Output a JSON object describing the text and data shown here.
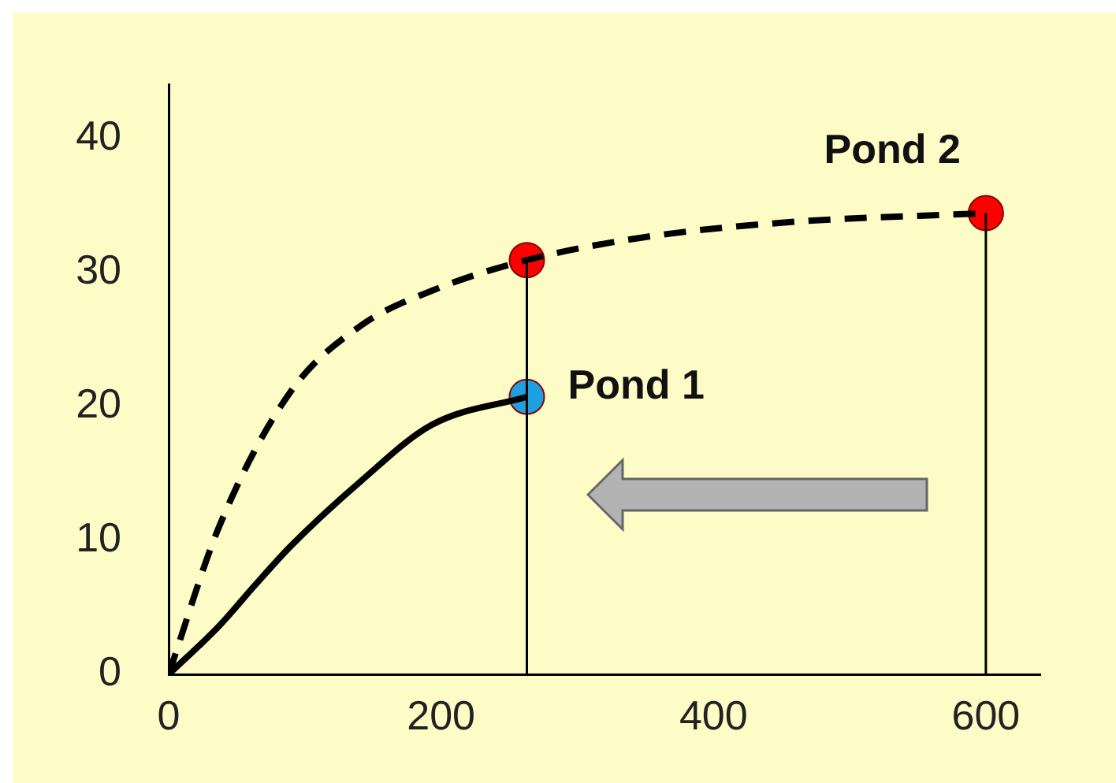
{
  "chart_data": {
    "type": "line",
    "xlim": [
      0,
      640
    ],
    "xticks": [
      0,
      200,
      400,
      600
    ],
    "ylim": [
      0,
      44
    ],
    "yticks": [
      0,
      10,
      20,
      30,
      40
    ],
    "grid": false,
    "legend": false,
    "series": [
      {
        "name": "Pond 1",
        "color": "#000000",
        "line_style": "solid",
        "marker": "none",
        "x": [
          0,
          37,
          63,
          89,
          141,
          193,
          263
        ],
        "values": [
          0,
          3.6,
          6.6,
          9.5,
          14.4,
          18.6,
          20.7
        ]
      },
      {
        "name": "Pond 2",
        "color": "#000000",
        "line_style": "dashed",
        "marker": "none",
        "x": [
          0,
          37,
          89,
          141,
          193,
          263,
          349,
          452,
          600
        ],
        "values": [
          0,
          11,
          21,
          26,
          28.6,
          30.9,
          32.6,
          33.7,
          34.4
        ]
      },
      {
        "type": "line",
        "color": "#000000",
        "line_style": "solid",
        "marker": "none",
        "x": [
          263,
          263
        ],
        "values": [
          0,
          30.9
        ]
      },
      {
        "type": "line",
        "color": "#000000",
        "line_style": "solid",
        "marker": "none",
        "x": [
          600,
          600
        ],
        "values": [
          0,
          34.4
        ]
      },
      {
        "type": "scatter",
        "marker": "circle",
        "x": [
          263,
          263,
          600
        ],
        "values": [
          20.7,
          30.9,
          34.4
        ],
        "colors": [
          "#1ea0e0",
          "#ff0000",
          "#ff0000"
        ]
      }
    ]
  }
}
